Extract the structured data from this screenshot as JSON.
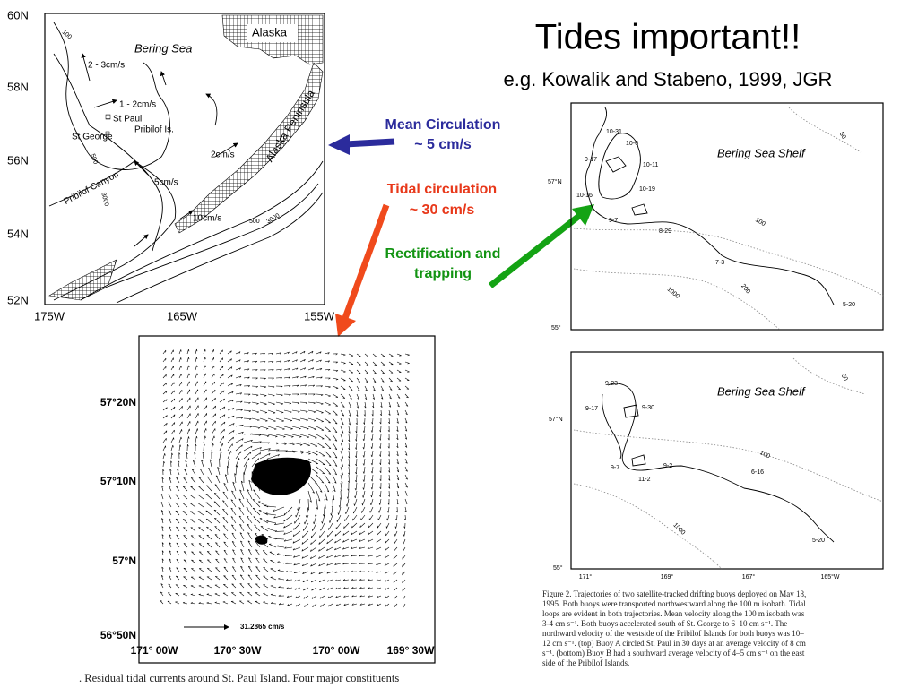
{
  "title": "Tides important!!",
  "subtitle": "e.g. Kowalik and Stabeno, 1999, JGR",
  "annotations": {
    "mean": [
      "Mean Circulation",
      "~ 5 cm/s"
    ],
    "tidal": [
      "Tidal circulation",
      "~ 30 cm/s"
    ],
    "rectification": [
      "Rectification and",
      "trapping"
    ]
  },
  "map_circulation": {
    "lat_labels": [
      "60N",
      "58N",
      "56N",
      "54N",
      "52N"
    ],
    "lon_labels": [
      "175W",
      "165W",
      "155W"
    ],
    "labels": [
      "Bering Sea",
      "Alaska",
      "Alaska Peninsula",
      "St Paul",
      "Pribilof Is.",
      "St George",
      "Pribilof Canyon",
      "2 - 3cm/s",
      "1 - 2cm/s",
      "2cm/s",
      "5cm/s",
      "10cm/s"
    ],
    "contours": [
      "100",
      "500",
      "3000",
      "500",
      "3000"
    ]
  },
  "map_tidal": {
    "lat_labels": [
      "57°20N",
      "57°10N",
      "57°N",
      "56°50N"
    ],
    "lon_labels": [
      "171° 00W",
      "170° 30W",
      "170° 00W",
      "169° 30W"
    ],
    "scale": "31.2865   cm/s",
    "caption": ". Residual tidal currents around St. Paul Island. Four major constituents"
  },
  "map_buoy_top": {
    "title": "Bering Sea Shelf",
    "lat_labels": [
      "57°N",
      "55°"
    ],
    "dates": [
      "10-31",
      "10-6",
      "9-17",
      "10-11",
      "10-16",
      "10-19",
      "9-7",
      "8-29",
      "7-3",
      "5-20"
    ],
    "contours": [
      "50",
      "100",
      "200",
      "1000"
    ]
  },
  "map_buoy_bottom": {
    "title": "Bering Sea Shelf",
    "lat_labels": [
      "57°N",
      "55°"
    ],
    "lon_labels": [
      "171°",
      "169°",
      "167°",
      "165°W"
    ],
    "dates": [
      "9-23",
      "9-17",
      "9-30",
      "9-7",
      "9-2",
      "11-2",
      "6-16",
      "5-20"
    ],
    "contours": [
      "50",
      "100",
      "1000"
    ]
  },
  "figure_caption": [
    "Figure 2.  Trajectories of two satellite-tracked drifting buoys deployed on May 18,",
    "1995. Both buoys were transported northwestward along the 100 m isobath. Tidal",
    "loops are evident in both trajectories. Mean velocity along the 100 m isobath was",
    "3-4 cm s⁻¹. Both buoys accelerated south of St. George to 6–10 cm s⁻¹. The",
    "northward velocity of the westside of the Pribilof Islands for both buoys was 10–",
    "12 cm s⁻¹. (top) Buoy A circled St. Paul in 30 days at an average velocity of 8 cm",
    "s⁻¹. (bottom) Buoy B had a southward average velocity of 4–5 cm s⁻¹ on the east",
    "side of the Pribilof Islands."
  ]
}
